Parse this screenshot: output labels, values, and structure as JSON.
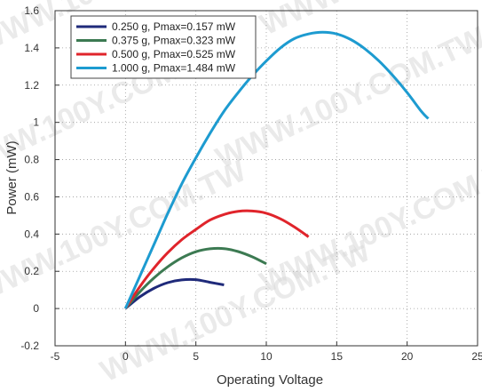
{
  "chart_data": {
    "type": "line",
    "xlabel": "Operating Voltage",
    "ylabel": "Power (mW)",
    "xlim": [
      -5,
      25
    ],
    "ylim": [
      -0.2,
      1.6
    ],
    "xticks": [
      "-5",
      "0",
      "5",
      "10",
      "15",
      "20",
      "25"
    ],
    "yticks": [
      "-0.2",
      "0",
      "0.2",
      "0.4",
      "0.6",
      "0.8",
      "1",
      "1.2",
      "1.4",
      "1.6"
    ],
    "grid": true,
    "legend_position": "top-left",
    "watermark": "WWW.100Y.COM.TW",
    "series": [
      {
        "name": "0.250 g, Pmax=0.157 mW",
        "color": "#1f2a7a",
        "x": [
          0,
          1,
          2,
          3,
          4,
          5,
          6,
          7
        ],
        "y": [
          0,
          0.062,
          0.108,
          0.139,
          0.154,
          0.155,
          0.141,
          0.127
        ]
      },
      {
        "name": "0.375 g, Pmax=0.323 mW",
        "color": "#3c7a52",
        "x": [
          0,
          1,
          2,
          3,
          4,
          5,
          6,
          7,
          8,
          9,
          10
        ],
        "y": [
          0,
          0.088,
          0.163,
          0.224,
          0.272,
          0.305,
          0.321,
          0.322,
          0.306,
          0.278,
          0.24
        ]
      },
      {
        "name": "0.500 g, Pmax=0.525 mW",
        "color": "#e0242b",
        "x": [
          0,
          1,
          2,
          3,
          4,
          5,
          6,
          7,
          8,
          9,
          10,
          11,
          12,
          13
        ],
        "y": [
          0,
          0.115,
          0.215,
          0.3,
          0.37,
          0.425,
          0.475,
          0.505,
          0.522,
          0.524,
          0.512,
          0.482,
          0.438,
          0.385
        ]
      },
      {
        "name": "1.000 g, Pmax=1.484 mW",
        "color": "#1d9bd0",
        "x": [
          0,
          1,
          2,
          3,
          4,
          5,
          6,
          7,
          8,
          9,
          10,
          11,
          12,
          13,
          14,
          15,
          16,
          17,
          18,
          19,
          20,
          21,
          21.5
        ],
        "y": [
          0,
          0.17,
          0.34,
          0.51,
          0.67,
          0.81,
          0.94,
          1.06,
          1.16,
          1.25,
          1.33,
          1.4,
          1.45,
          1.475,
          1.484,
          1.475,
          1.445,
          1.395,
          1.33,
          1.25,
          1.16,
          1.06,
          1.02
        ]
      }
    ]
  }
}
